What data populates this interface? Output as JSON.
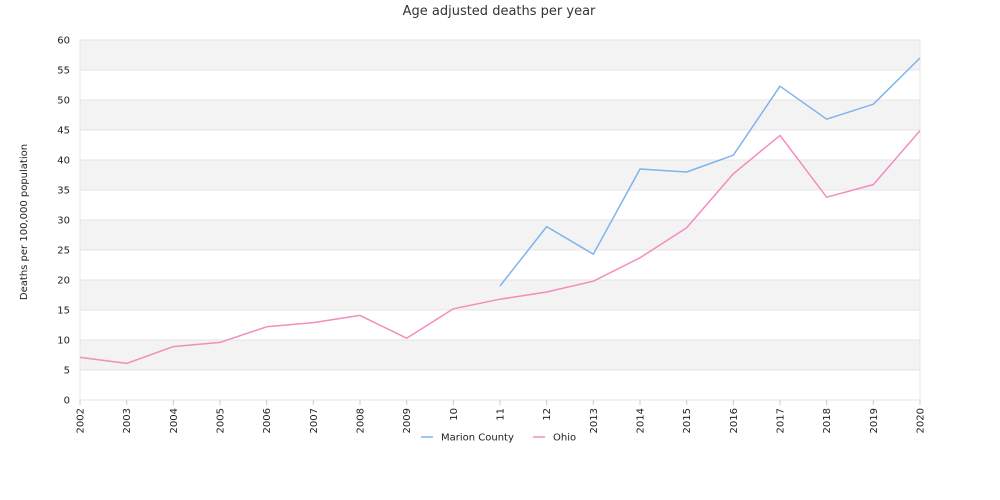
{
  "chart_data": {
    "type": "line",
    "title": "Age adjusted deaths per year",
    "ylabel": "Deaths per 100,000 population",
    "xlabel": "",
    "ylim": [
      0,
      60
    ],
    "yticks": [
      0,
      5,
      10,
      15,
      20,
      25,
      30,
      35,
      40,
      45,
      50,
      55,
      60
    ],
    "categories": [
      "2002",
      "2003",
      "2004",
      "2005",
      "2006",
      "2007",
      "2008",
      "2009",
      "10",
      "11",
      "12",
      "2013",
      "2014",
      "2015",
      "2016",
      "2017",
      "2018",
      "2019",
      "2020"
    ],
    "grid": "horizontal alternating bands",
    "legend_position": "bottom",
    "series": [
      {
        "name": "Marion County",
        "color": "#7cb5ec",
        "values": [
          null,
          null,
          null,
          null,
          null,
          null,
          null,
          null,
          null,
          19.0,
          28.9,
          24.3,
          38.5,
          38.0,
          40.8,
          52.3,
          46.8,
          49.3,
          57.0
        ]
      },
      {
        "name": "Ohio",
        "color": "#f28dbd",
        "values": [
          7.1,
          6.1,
          8.9,
          9.6,
          12.2,
          12.9,
          14.1,
          10.3,
          15.2,
          16.8,
          18.0,
          19.8,
          23.7,
          28.7,
          37.7,
          44.1,
          33.8,
          35.9,
          44.9
        ]
      }
    ]
  }
}
